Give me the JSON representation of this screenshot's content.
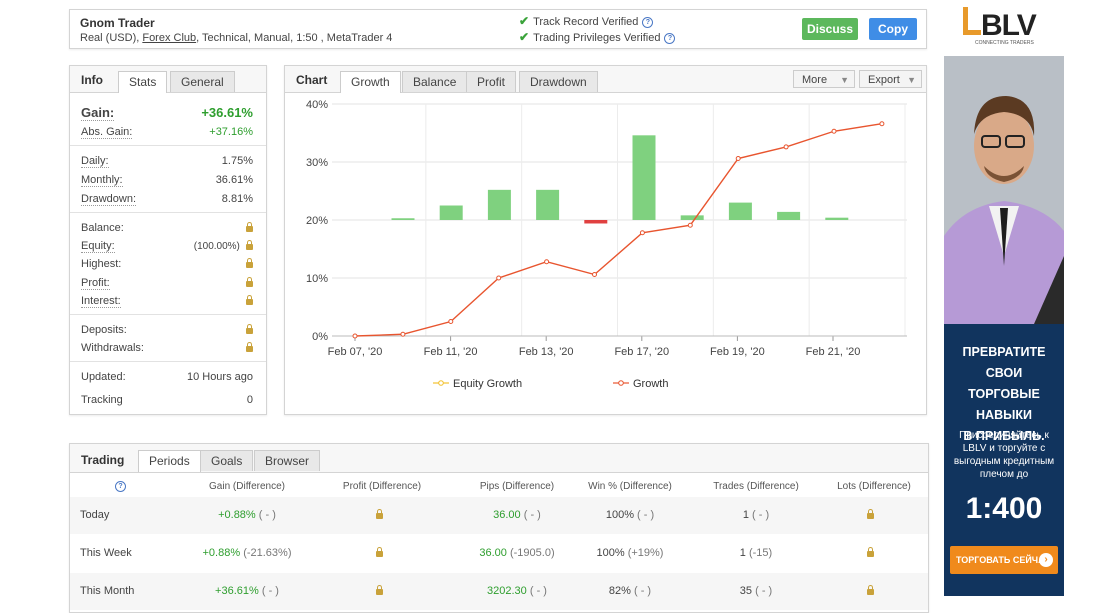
{
  "header": {
    "title": "Gnom Trader",
    "account_prefix": "Real (USD), ",
    "broker": "Forex Club",
    "account_suffix": ", Technical, Manual, 1:50 , MetaTrader 4",
    "verify1": "Track Record Verified",
    "verify2": "Trading Privileges Verified",
    "discuss": "Discuss",
    "copy": "Copy"
  },
  "info": {
    "tab_head": "Info",
    "tabs": [
      "Stats",
      "General"
    ],
    "gain_label": "Gain:",
    "gain_value": "+36.61%",
    "abs_gain_label": "Abs. Gain:",
    "abs_gain_value": "+37.16%",
    "daily_label": "Daily:",
    "daily_value": "1.75%",
    "monthly_label": "Monthly:",
    "monthly_value": "36.61%",
    "drawdown_label": "Drawdown:",
    "drawdown_value": "8.81%",
    "balance_label": "Balance:",
    "equity_label": "Equity:",
    "equity_value": "(100.00%)",
    "highest_label": "Highest:",
    "profit_label": "Profit:",
    "interest_label": "Interest:",
    "deposits_label": "Deposits:",
    "withdrawals_label": "Withdrawals:",
    "updated_label": "Updated:",
    "updated_value": "10 Hours ago",
    "tracking_label": "Tracking",
    "tracking_value": "0"
  },
  "chart_panel": {
    "tab_head": "Chart",
    "tabs": [
      "Growth",
      "Balance",
      "Profit",
      "Drawdown"
    ],
    "more": "More",
    "export": "Export"
  },
  "chart_data": {
    "type": "line",
    "x_ticks": [
      "Feb 07, '20",
      "Feb 11, '20",
      "Feb 13, '20",
      "Feb 17, '20",
      "Feb 19, '20",
      "Feb 21, '20"
    ],
    "ylim": [
      0,
      40
    ],
    "y_ticks": [
      "0%",
      "10%",
      "20%",
      "30%",
      "40%"
    ],
    "legend": [
      "Equity Growth",
      "Growth"
    ],
    "series": [
      {
        "name": "Growth",
        "color": "#e8552f",
        "values": [
          0,
          0.3,
          2.5,
          10,
          12.8,
          10.6,
          17.8,
          19.1,
          30.6,
          32.6,
          35.3,
          36.6
        ]
      },
      {
        "name": "Equity Growth",
        "color": "#f2c12e",
        "values": []
      }
    ],
    "bars": {
      "color_pos": "#7fd17f",
      "color_neg": "#e04040",
      "values": [
        0.3,
        2.5,
        5.2,
        5.2,
        -0.6,
        14.6,
        0.8,
        3,
        1.4,
        0.4
      ]
    }
  },
  "trading": {
    "tab_head": "Trading",
    "tabs": [
      "Periods",
      "Goals",
      "Browser"
    ],
    "columns": [
      "Gain (Difference)",
      "Profit (Difference)",
      "Pips (Difference)",
      "Win % (Difference)",
      "Trades (Difference)",
      "Lots (Difference)"
    ],
    "rows": [
      {
        "period": "Today",
        "gain": "+0.88%",
        "gain_diff": "( - )",
        "pips": "36.00",
        "pips_diff": "( - )",
        "win": "100%",
        "win_diff": "( - )",
        "trades": "1",
        "trades_diff": "( - )"
      },
      {
        "period": "This Week",
        "gain": "+0.88%",
        "gain_diff": "(-21.63%)",
        "pips": "36.00",
        "pips_diff": "(-1905.0)",
        "win": "100%",
        "win_diff": "(+19%)",
        "trades": "1",
        "trades_diff": "(-15)"
      },
      {
        "period": "This Month",
        "gain": "+36.61%",
        "gain_diff": "( - )",
        "pips": "3202.30",
        "pips_diff": "( - )",
        "win": "82%",
        "win_diff": "( - )",
        "trades": "35",
        "trades_diff": "( - )"
      }
    ]
  },
  "ad": {
    "logo": "LBLV",
    "logo_sub": "CONNECTING TRADERS",
    "headline": [
      "ПРЕВРАТИТЕ СВОИ",
      "ТОРГОВЫЕ НАВЫКИ",
      "В ПРИБЫЛЬ."
    ],
    "body": [
      "Присоединяйтесь к",
      "LBLV и торгуйте с",
      "выгодным кредитным",
      "плечом до"
    ],
    "leverage": "1:400",
    "cta": "ТОРГОВАТЬ СЕЙЧАС"
  }
}
